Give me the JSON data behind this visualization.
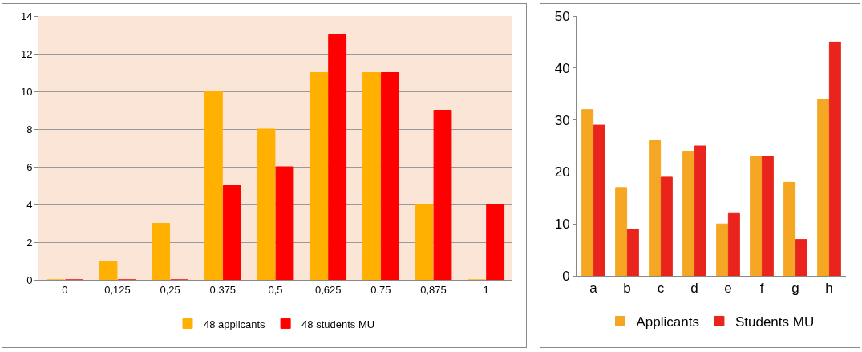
{
  "chart_data": [
    {
      "type": "bar",
      "categories": [
        "0",
        "0,125",
        "0,25",
        "0,375",
        "0,5",
        "0,625",
        "0,75",
        "0,875",
        "1"
      ],
      "series": [
        {
          "name": "48 applicants",
          "color": "#ffb000",
          "values": [
            0,
            1,
            3,
            10,
            8,
            11,
            11,
            4,
            0
          ]
        },
        {
          "name": "48 students MU",
          "color": "#ff0000",
          "values": [
            0,
            0,
            0,
            5,
            6,
            13,
            11,
            9,
            4
          ]
        }
      ],
      "ylim": [
        0,
        14
      ],
      "yticks": [
        0,
        2,
        4,
        6,
        8,
        10,
        12,
        14
      ],
      "grid": "y",
      "legend": "bottom"
    },
    {
      "type": "bar",
      "categories": [
        "a",
        "b",
        "c",
        "d",
        "e",
        "f",
        "g",
        "h"
      ],
      "series": [
        {
          "name": "Applicants",
          "color": "#f5a623",
          "values": [
            32,
            17,
            26,
            24,
            10,
            23,
            18,
            34
          ]
        },
        {
          "name": "Students MU",
          "color": "#e8241c",
          "values": [
            29,
            9,
            19,
            25,
            12,
            23,
            7,
            45
          ]
        }
      ],
      "ylim": [
        0,
        50
      ],
      "yticks": [
        0,
        10,
        20,
        30,
        40,
        50
      ],
      "grid": false,
      "legend": "bottom"
    }
  ]
}
